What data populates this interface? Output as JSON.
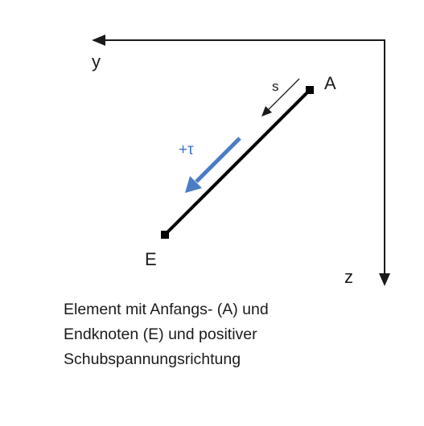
{
  "axes": {
    "y_label": "y",
    "z_label": "z"
  },
  "nodes": {
    "start_label": "A",
    "end_label": "E"
  },
  "s_label": "s",
  "tau_label": "+τ",
  "caption": {
    "line1": "Element mit Anfangs- (A) und",
    "line2": "Endknoten (E) und positiver",
    "line3": "Schubspannungsrichtung"
  },
  "colors": {
    "ink": "#1a1a1a",
    "tau_arrow": "#4a7dc4",
    "tau_text": "#3b72c2"
  }
}
